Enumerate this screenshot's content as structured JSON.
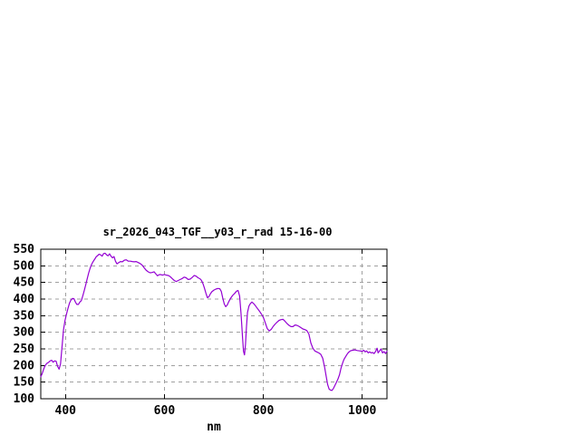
{
  "window": {
    "background": "#ffffff",
    "kind": "gnuplot-output"
  },
  "chart_data": {
    "type": "line",
    "title": "sr_2026_043_TGF__y03_r_rad 15-16-00",
    "xlabel": "nm",
    "ylabel": "",
    "xlim": [
      350,
      1050
    ],
    "ylim": [
      100,
      550
    ],
    "xticks": [
      400,
      600,
      800,
      1000
    ],
    "yticks": [
      100,
      150,
      200,
      250,
      300,
      350,
      400,
      450,
      500,
      550
    ],
    "grid": true,
    "legend_position": "none",
    "line_color": "#9400d3",
    "grid_color": "#a0a0a0",
    "axis_color": "#000000",
    "series": [
      {
        "name": "sr_2026_043_TGF__y03_r_rad",
        "points": [
          [
            350,
            166
          ],
          [
            353,
            176
          ],
          [
            356,
            190
          ],
          [
            359,
            200
          ],
          [
            362,
            206
          ],
          [
            366,
            210
          ],
          [
            369,
            214
          ],
          [
            372,
            216
          ],
          [
            375,
            210
          ],
          [
            378,
            214
          ],
          [
            381,
            213
          ],
          [
            384,
            197
          ],
          [
            387,
            189
          ],
          [
            390,
            205
          ],
          [
            393,
            258
          ],
          [
            396,
            308
          ],
          [
            399,
            335
          ],
          [
            402,
            355
          ],
          [
            405,
            372
          ],
          [
            408,
            388
          ],
          [
            411,
            397
          ],
          [
            414,
            402
          ],
          [
            417,
            401
          ],
          [
            420,
            391
          ],
          [
            423,
            384
          ],
          [
            426,
            384
          ],
          [
            429,
            391
          ],
          [
            432,
            395
          ],
          [
            435,
            410
          ],
          [
            438,
            426
          ],
          [
            441,
            444
          ],
          [
            444,
            462
          ],
          [
            447,
            479
          ],
          [
            450,
            494
          ],
          [
            453,
            505
          ],
          [
            456,
            513
          ],
          [
            459,
            520
          ],
          [
            462,
            527
          ],
          [
            465,
            531
          ],
          [
            468,
            535
          ],
          [
            471,
            533
          ],
          [
            474,
            529
          ],
          [
            477,
            537
          ],
          [
            480,
            538
          ],
          [
            483,
            533
          ],
          [
            486,
            530
          ],
          [
            489,
            536
          ],
          [
            492,
            529
          ],
          [
            495,
            524
          ],
          [
            498,
            528
          ],
          [
            501,
            514
          ],
          [
            504,
            506
          ],
          [
            507,
            509
          ],
          [
            511,
            513
          ],
          [
            515,
            512
          ],
          [
            519,
            517
          ],
          [
            523,
            518
          ],
          [
            527,
            514
          ],
          [
            531,
            514
          ],
          [
            535,
            513
          ],
          [
            539,
            512
          ],
          [
            543,
            513
          ],
          [
            547,
            510
          ],
          [
            551,
            507
          ],
          [
            555,
            502
          ],
          [
            559,
            494
          ],
          [
            563,
            487
          ],
          [
            567,
            482
          ],
          [
            571,
            479
          ],
          [
            575,
            480
          ],
          [
            579,
            482
          ],
          [
            583,
            475
          ],
          [
            586,
            470
          ],
          [
            589,
            473
          ],
          [
            592,
            474
          ],
          [
            596,
            472
          ],
          [
            600,
            474
          ],
          [
            604,
            472
          ],
          [
            608,
            471
          ],
          [
            612,
            467
          ],
          [
            616,
            461
          ],
          [
            620,
            456
          ],
          [
            624,
            453
          ],
          [
            628,
            456
          ],
          [
            632,
            459
          ],
          [
            636,
            462
          ],
          [
            640,
            466
          ],
          [
            644,
            464
          ],
          [
            648,
            459
          ],
          [
            652,
            460
          ],
          [
            656,
            465
          ],
          [
            660,
            471
          ],
          [
            664,
            469
          ],
          [
            668,
            464
          ],
          [
            672,
            461
          ],
          [
            675,
            456
          ],
          [
            678,
            446
          ],
          [
            681,
            433
          ],
          [
            684,
            417
          ],
          [
            687,
            404
          ],
          [
            690,
            407
          ],
          [
            693,
            416
          ],
          [
            696,
            422
          ],
          [
            700,
            427
          ],
          [
            704,
            430
          ],
          [
            708,
            432
          ],
          [
            712,
            431
          ],
          [
            715,
            423
          ],
          [
            718,
            403
          ],
          [
            721,
            385
          ],
          [
            724,
            377
          ],
          [
            727,
            382
          ],
          [
            730,
            392
          ],
          [
            734,
            403
          ],
          [
            738,
            411
          ],
          [
            742,
            417
          ],
          [
            746,
            424
          ],
          [
            749,
            426
          ],
          [
            752,
            409
          ],
          [
            755,
            355
          ],
          [
            758,
            282
          ],
          [
            760,
            243
          ],
          [
            762,
            232
          ],
          [
            764,
            264
          ],
          [
            766,
            318
          ],
          [
            768,
            360
          ],
          [
            771,
            379
          ],
          [
            774,
            387
          ],
          [
            777,
            391
          ],
          [
            780,
            387
          ],
          [
            784,
            380
          ],
          [
            788,
            372
          ],
          [
            792,
            364
          ],
          [
            796,
            355
          ],
          [
            800,
            345
          ],
          [
            804,
            328
          ],
          [
            808,
            311
          ],
          [
            812,
            304
          ],
          [
            816,
            309
          ],
          [
            820,
            318
          ],
          [
            824,
            325
          ],
          [
            828,
            331
          ],
          [
            832,
            336
          ],
          [
            836,
            338
          ],
          [
            840,
            339
          ],
          [
            844,
            333
          ],
          [
            848,
            326
          ],
          [
            852,
            321
          ],
          [
            856,
            317
          ],
          [
            860,
            317
          ],
          [
            864,
            322
          ],
          [
            868,
            321
          ],
          [
            872,
            318
          ],
          [
            876,
            314
          ],
          [
            880,
            310
          ],
          [
            884,
            308
          ],
          [
            888,
            305
          ],
          [
            892,
            295
          ],
          [
            896,
            268
          ],
          [
            900,
            253
          ],
          [
            904,
            244
          ],
          [
            908,
            241
          ],
          [
            912,
            238
          ],
          [
            916,
            234
          ],
          [
            920,
            222
          ],
          [
            924,
            195
          ],
          [
            927,
            168
          ],
          [
            930,
            143
          ],
          [
            933,
            129
          ],
          [
            936,
            126
          ],
          [
            939,
            125
          ],
          [
            942,
            132
          ],
          [
            945,
            141
          ],
          [
            948,
            150
          ],
          [
            951,
            160
          ],
          [
            954,
            172
          ],
          [
            957,
            191
          ],
          [
            960,
            206
          ],
          [
            963,
            218
          ],
          [
            966,
            226
          ],
          [
            969,
            233
          ],
          [
            972,
            239
          ],
          [
            976,
            244
          ],
          [
            980,
            246
          ],
          [
            985,
            247
          ],
          [
            990,
            245
          ],
          [
            995,
            244
          ],
          [
            1000,
            243
          ],
          [
            1003,
            246
          ],
          [
            1006,
            241
          ],
          [
            1009,
            244
          ],
          [
            1012,
            238
          ],
          [
            1015,
            241
          ],
          [
            1018,
            238
          ],
          [
            1021,
            239
          ],
          [
            1024,
            236
          ],
          [
            1027,
            242
          ],
          [
            1030,
            252
          ],
          [
            1032,
            238
          ],
          [
            1035,
            244
          ],
          [
            1038,
            250
          ],
          [
            1041,
            238
          ],
          [
            1044,
            242
          ],
          [
            1047,
            236
          ],
          [
            1050,
            243
          ]
        ]
      }
    ]
  }
}
